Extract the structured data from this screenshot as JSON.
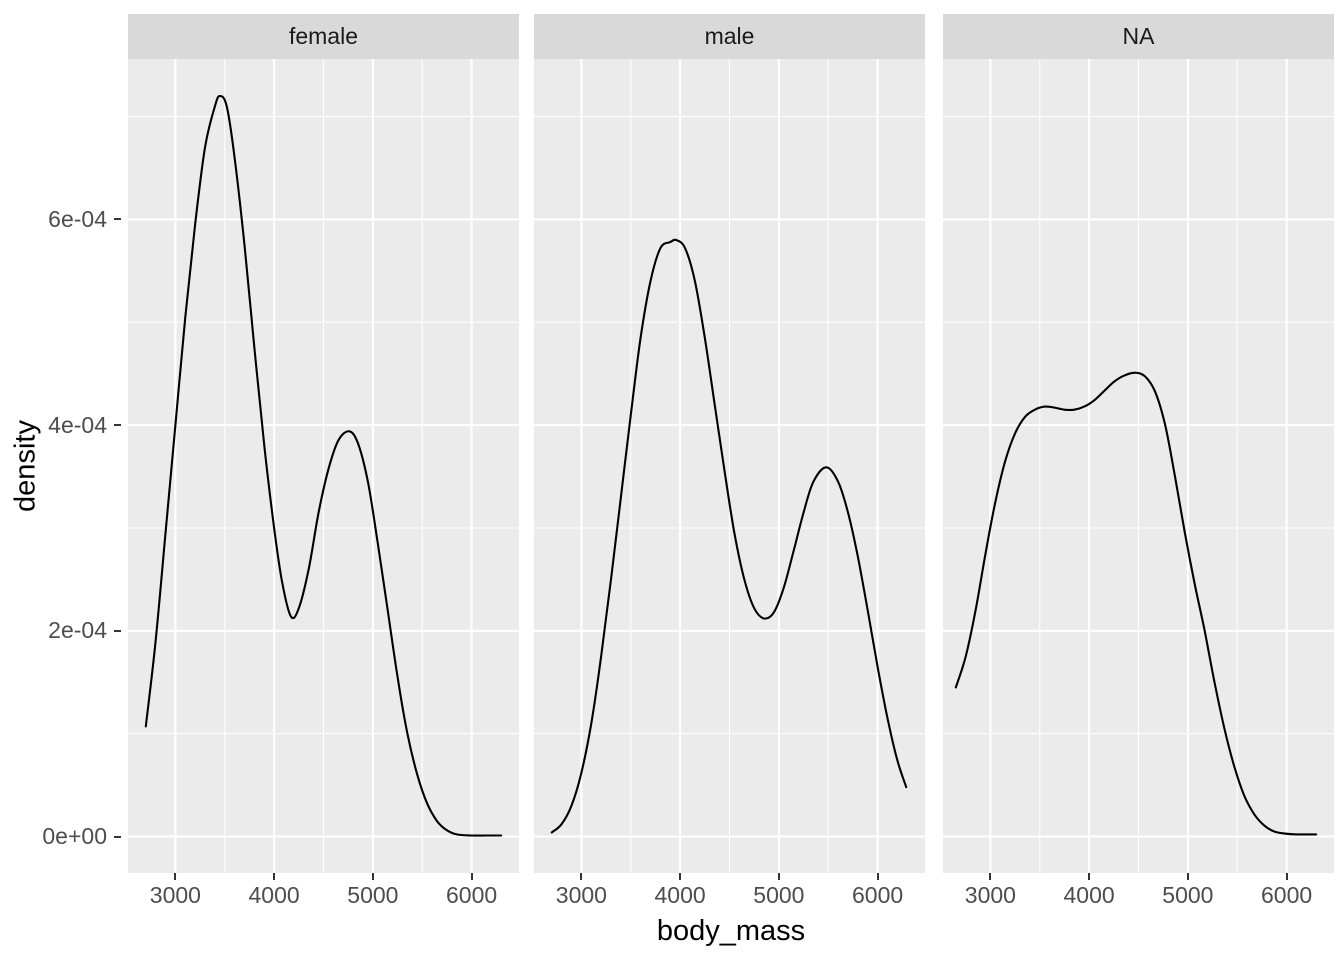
{
  "figure": {
    "background": "#ffffff",
    "panel_bg": "#ebebeb",
    "strip_bg": "#d9d9d9",
    "grid_color": "#ffffff",
    "curve_color": "#000000",
    "tick_color": "#333333",
    "tick_label_color": "#4d4d4d",
    "axis_title_color": "#000000",
    "strip_text_color": "#1a1a1a"
  },
  "chart_data": {
    "type": "line",
    "subtype": "faceted-density",
    "title": "",
    "xlabel": "body_mass",
    "ylabel": "density",
    "legend_position": "none",
    "grid": true,
    "xlim": [
      2520,
      6480
    ],
    "ylim": [
      -3.55e-05,
      0.000756
    ],
    "x_major_ticks": [
      3000,
      4000,
      5000,
      6000
    ],
    "x_minor_gridlines": [
      3500,
      4500,
      5500
    ],
    "y_major_ticks": [
      {
        "label": "0e+00",
        "value": 0.0
      },
      {
        "label": "2e-04",
        "value": 0.0002
      },
      {
        "label": "4e-04",
        "value": 0.0004
      },
      {
        "label": "6e-04",
        "value": 0.0006
      }
    ],
    "y_minor_gridlines": [
      0.0001,
      0.0003,
      0.0005,
      0.0007
    ],
    "facets": [
      {
        "label": "female",
        "peak_summary": "main peak ~ (3450, 7.2e-4); valley ~ (4170, 2.1e-4); second peak ~ (4760, 3.9e-4)",
        "series": [
          [
            2700,
            0.000107
          ],
          [
            2800,
            0.00019
          ],
          [
            2900,
            0.000295
          ],
          [
            3000,
            0.0004
          ],
          [
            3100,
            0.000505
          ],
          [
            3200,
            0.000595
          ],
          [
            3300,
            0.00067
          ],
          [
            3400,
            0.00071
          ],
          [
            3450,
            0.00072
          ],
          [
            3520,
            0.00071
          ],
          [
            3600,
            0.00066
          ],
          [
            3700,
            0.000575
          ],
          [
            3800,
            0.000475
          ],
          [
            3900,
            0.00038
          ],
          [
            4000,
            0.0003
          ],
          [
            4080,
            0.000248
          ],
          [
            4170,
            0.000214
          ],
          [
            4250,
            0.000222
          ],
          [
            4350,
            0.00026
          ],
          [
            4450,
            0.000315
          ],
          [
            4550,
            0.000357
          ],
          [
            4650,
            0.000385
          ],
          [
            4760,
            0.000394
          ],
          [
            4850,
            0.000382
          ],
          [
            4950,
            0.000345
          ],
          [
            5050,
            0.000285
          ],
          [
            5150,
            0.00022
          ],
          [
            5250,
            0.000155
          ],
          [
            5350,
            0.0001
          ],
          [
            5450,
            6e-05
          ],
          [
            5550,
            3.2e-05
          ],
          [
            5650,
            1.5e-05
          ],
          [
            5750,
            6e-06
          ],
          [
            5850,
            2e-06
          ],
          [
            6000,
            1e-06
          ],
          [
            6150,
            1e-06
          ],
          [
            6300,
            1e-06
          ]
        ]
      },
      {
        "label": "male",
        "peak_summary": "main peak ~ (3960, 5.8e-4); valley ~ (4850, 2.1e-4); second peak ~ (5480, 3.6e-4); ends ~ (6290, 0.5e-4)",
        "series": [
          [
            2700,
            4e-06
          ],
          [
            2800,
            1.2e-05
          ],
          [
            2900,
            3e-05
          ],
          [
            3000,
            6.2e-05
          ],
          [
            3100,
            0.00011
          ],
          [
            3200,
            0.000175
          ],
          [
            3300,
            0.00025
          ],
          [
            3400,
            0.00033
          ],
          [
            3500,
            0.00041
          ],
          [
            3600,
            0.000485
          ],
          [
            3700,
            0.00054
          ],
          [
            3800,
            0.000572
          ],
          [
            3900,
            0.000578
          ],
          [
            3960,
            0.00058
          ],
          [
            4050,
            0.000572
          ],
          [
            4150,
            0.00054
          ],
          [
            4250,
            0.000485
          ],
          [
            4350,
            0.00042
          ],
          [
            4450,
            0.000355
          ],
          [
            4550,
            0.000295
          ],
          [
            4650,
            0.00025
          ],
          [
            4750,
            0.000222
          ],
          [
            4850,
            0.000212
          ],
          [
            4950,
            0.000218
          ],
          [
            5050,
            0.000242
          ],
          [
            5150,
            0.000278
          ],
          [
            5250,
            0.000315
          ],
          [
            5350,
            0.000345
          ],
          [
            5480,
            0.000359
          ],
          [
            5600,
            0.000345
          ],
          [
            5700,
            0.000315
          ],
          [
            5800,
            0.000272
          ],
          [
            5900,
            0.00022
          ],
          [
            6000,
            0.000165
          ],
          [
            6100,
            0.000115
          ],
          [
            6200,
            7.4e-05
          ],
          [
            6290,
            4.8e-05
          ]
        ]
      },
      {
        "label": "NA",
        "peak_summary": "shoulder ~ (3600, 4.2e-4); shallow dip ~ (3850, 4.15e-4); main peak ~ (4470, 4.5e-4)",
        "series": [
          [
            2650,
            0.000145
          ],
          [
            2750,
            0.000175
          ],
          [
            2850,
            0.00022
          ],
          [
            2950,
            0.000275
          ],
          [
            3050,
            0.000325
          ],
          [
            3150,
            0.000365
          ],
          [
            3250,
            0.000392
          ],
          [
            3350,
            0.000408
          ],
          [
            3450,
            0.000415
          ],
          [
            3550,
            0.000418
          ],
          [
            3650,
            0.000417
          ],
          [
            3750,
            0.000415
          ],
          [
            3850,
            0.000415
          ],
          [
            3950,
            0.000418
          ],
          [
            4050,
            0.000424
          ],
          [
            4150,
            0.000433
          ],
          [
            4250,
            0.000442
          ],
          [
            4350,
            0.000448
          ],
          [
            4470,
            0.000451
          ],
          [
            4570,
            0.000447
          ],
          [
            4670,
            0.000432
          ],
          [
            4770,
            0.0004
          ],
          [
            4870,
            0.00035
          ],
          [
            4970,
            0.000295
          ],
          [
            5070,
            0.000245
          ],
          [
            5170,
            0.0002
          ],
          [
            5270,
            0.00015
          ],
          [
            5370,
            0.000105
          ],
          [
            5470,
            6.8e-05
          ],
          [
            5570,
            4e-05
          ],
          [
            5670,
            2.2e-05
          ],
          [
            5770,
            1.1e-05
          ],
          [
            5870,
            5e-06
          ],
          [
            5970,
            3e-06
          ],
          [
            6100,
            2e-06
          ],
          [
            6300,
            2e-06
          ]
        ]
      }
    ]
  }
}
